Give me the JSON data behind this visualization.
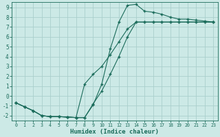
{
  "xlabel": "Humidex (Indice chaleur)",
  "xlim": [
    -0.5,
    23.5
  ],
  "ylim": [
    -2.5,
    9.5
  ],
  "xticks": [
    0,
    1,
    2,
    3,
    4,
    5,
    6,
    7,
    8,
    9,
    10,
    11,
    12,
    13,
    14,
    15,
    16,
    17,
    18,
    19,
    20,
    21,
    22,
    23
  ],
  "yticks": [
    -2,
    -1,
    0,
    1,
    2,
    3,
    4,
    5,
    6,
    7,
    8,
    9
  ],
  "bg_color": "#cce9e6",
  "grid_color": "#aacfcc",
  "line_color": "#1a6b5a",
  "line1_x": [
    0,
    1,
    2,
    3,
    4,
    5,
    6,
    7,
    8,
    9,
    10,
    11,
    12,
    13,
    14,
    15,
    16,
    17,
    18,
    19,
    20,
    21,
    22,
    23
  ],
  "line1_y": [
    -0.7,
    -1.1,
    -1.5,
    -2.0,
    -2.1,
    -2.1,
    -2.15,
    -2.2,
    -2.2,
    -0.8,
    0.5,
    2.2,
    4.0,
    6.0,
    7.5,
    7.5,
    7.5,
    7.5,
    7.5,
    7.5,
    7.5,
    7.5,
    7.5,
    7.5
  ],
  "line2_x": [
    0,
    1,
    2,
    3,
    4,
    5,
    6,
    7,
    8,
    9,
    10,
    11,
    12,
    13,
    14,
    15,
    16,
    17,
    18,
    19,
    20,
    21,
    22,
    23
  ],
  "line2_y": [
    -0.7,
    -1.1,
    -1.5,
    -2.0,
    -2.1,
    -2.1,
    -2.15,
    -2.2,
    -2.2,
    -0.9,
    1.2,
    4.8,
    7.5,
    9.2,
    9.3,
    8.6,
    8.5,
    8.3,
    8.0,
    7.8,
    7.8,
    7.7,
    7.6,
    7.5
  ],
  "line3_x": [
    0,
    1,
    2,
    3,
    4,
    5,
    6,
    7,
    8,
    9,
    10,
    11,
    12,
    13,
    14,
    15,
    16,
    17,
    18,
    19,
    20,
    21,
    22,
    23
  ],
  "line3_y": [
    -0.7,
    -1.1,
    -1.5,
    -2.0,
    -2.1,
    -2.1,
    -2.15,
    -2.2,
    1.2,
    2.2,
    3.0,
    4.2,
    5.5,
    6.8,
    7.5,
    7.5,
    7.5,
    7.5,
    7.5,
    7.5,
    7.5,
    7.5,
    7.5,
    7.5
  ]
}
